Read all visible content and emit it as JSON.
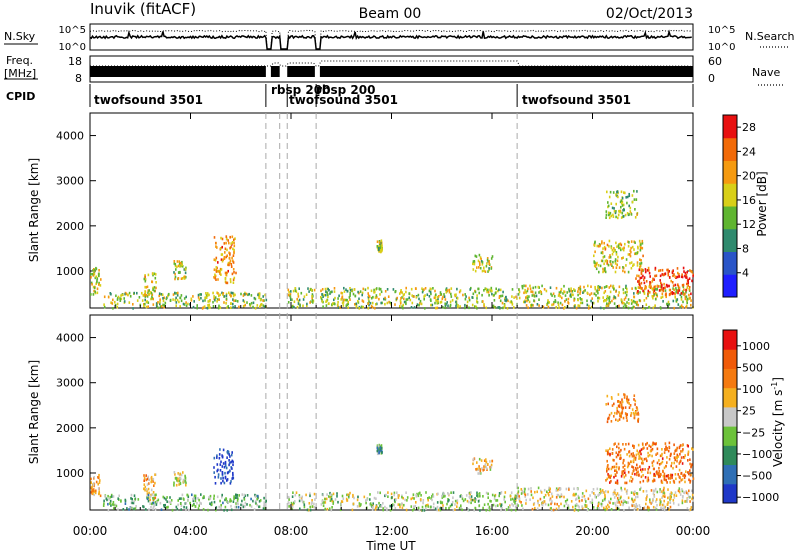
{
  "header": {
    "station": "Inuvik (fitACF)",
    "beam": "Beam 00",
    "date": "02/Oct/2013"
  },
  "panel_labels": {
    "nsky": "N.Sky",
    "nsearch": "N.Search",
    "freq": "Freq.",
    "freq_unit": "[MHz]",
    "nave": "Nave",
    "cpid": "CPID"
  },
  "noise_panel": {
    "left_ticks": [
      "10^5",
      "10^0"
    ],
    "right_ticks": [
      "10^5",
      "10^0"
    ]
  },
  "freq_panel": {
    "left_ticks": [
      "18",
      "8"
    ],
    "right_ticks": [
      "60",
      "0"
    ]
  },
  "cpid_segments": [
    {
      "label": "twofsound 3501",
      "start": 0.0,
      "end": 7.0
    },
    {
      "label": "rbsp 200",
      "start": 7.0,
      "end": 7.55
    },
    {
      "label": "rbsp 200",
      "start": 7.85,
      "end": 9.0
    },
    {
      "label": "twofsound 3501",
      "start": 9.0,
      "end": 17.0
    },
    {
      "label": "twofsound 3501",
      "start": 17.0,
      "end": 24.0
    }
  ],
  "mode_boundaries_hours": [
    7.0,
    7.55,
    7.85,
    9.0,
    17.0
  ],
  "chart_data": [
    {
      "type": "heatmap",
      "name": "power-panel",
      "ylabel": "Slant Range [km]",
      "xlabel": "",
      "xlim": [
        0,
        24
      ],
      "ylim": [
        180,
        4500
      ],
      "yticks": [
        "1000",
        "2000",
        "3000",
        "4000"
      ],
      "colorbar": {
        "label": "Power [dB]",
        "ticks": [
          "4",
          "8",
          "12",
          "16",
          "20",
          "24",
          "28"
        ],
        "range": [
          0,
          30
        ],
        "colors": [
          "#1f1fff",
          "#2a55c8",
          "#2f8a6e",
          "#5fb530",
          "#d8cf18",
          "#f59a10",
          "#f26a08",
          "#e81010"
        ]
      },
      "clusters": [
        {
          "t0": 0.0,
          "t1": 0.4,
          "r0": 500,
          "r1": 1100,
          "level": 0.55
        },
        {
          "t0": 2.1,
          "t1": 2.6,
          "r0": 400,
          "r1": 1000,
          "level": 0.6
        },
        {
          "t0": 3.3,
          "t1": 3.8,
          "r0": 850,
          "r1": 1250,
          "level": 0.55
        },
        {
          "t0": 4.9,
          "t1": 5.8,
          "r0": 750,
          "r1": 1800,
          "level": 0.75
        },
        {
          "t0": 0.5,
          "t1": 7.0,
          "r0": 200,
          "r1": 550,
          "level": 0.5
        },
        {
          "t0": 7.6,
          "t1": 17.0,
          "r0": 200,
          "r1": 650,
          "level": 0.5
        },
        {
          "t0": 11.4,
          "t1": 11.6,
          "r0": 1450,
          "r1": 1700,
          "level": 0.55
        },
        {
          "t0": 15.2,
          "t1": 16.0,
          "r0": 1000,
          "r1": 1400,
          "level": 0.55
        },
        {
          "t0": 17.0,
          "t1": 24.0,
          "r0": 200,
          "r1": 700,
          "level": 0.55
        },
        {
          "t0": 20.0,
          "t1": 22.0,
          "r0": 1000,
          "r1": 1700,
          "level": 0.6
        },
        {
          "t0": 20.5,
          "t1": 21.8,
          "r0": 2200,
          "r1": 2800,
          "level": 0.45
        },
        {
          "t0": 21.7,
          "t1": 24.0,
          "r0": 500,
          "r1": 1100,
          "level": 0.95
        }
      ]
    },
    {
      "type": "heatmap",
      "name": "velocity-panel",
      "ylabel": "Slant Range [km]",
      "xlabel": "Time UT",
      "xlim": [
        0,
        24
      ],
      "ylim": [
        180,
        4500
      ],
      "yticks": [
        "1000",
        "2000",
        "3000",
        "4000"
      ],
      "xticks": [
        "00:00",
        "04:00",
        "08:00",
        "12:00",
        "16:00",
        "20:00",
        "00:00"
      ],
      "colorbar": {
        "label": "Velocity [m s",
        "label_sup": "-1",
        "label_end": "]",
        "ticks": [
          "1000",
          "500",
          "100",
          "25",
          "−25",
          "−100",
          "−500",
          "−1000"
        ],
        "colors": [
          "#1f38c8",
          "#2f6fb5",
          "#2f8a5a",
          "#6cc23a",
          "#c8c8c8",
          "#f5b020",
          "#f57a10",
          "#f05a08",
          "#e81010"
        ]
      },
      "clusters": [
        {
          "t0": 0.0,
          "t1": 0.4,
          "r0": 500,
          "r1": 1000,
          "v": 0.7
        },
        {
          "t0": 2.1,
          "t1": 2.6,
          "r0": 400,
          "r1": 1000,
          "v": 0.65
        },
        {
          "t0": 3.3,
          "t1": 3.8,
          "r0": 750,
          "r1": 1050,
          "v": 0.5
        },
        {
          "t0": 4.9,
          "t1": 5.7,
          "r0": 750,
          "r1": 1550,
          "v": 0.0
        },
        {
          "t0": 0.5,
          "t1": 7.0,
          "r0": 200,
          "r1": 550,
          "v": 0.35
        },
        {
          "t0": 7.6,
          "t1": 17.0,
          "r0": 200,
          "r1": 600,
          "v": 0.45
        },
        {
          "t0": 11.4,
          "t1": 11.6,
          "r0": 1450,
          "r1": 1650,
          "v": 0.3
        },
        {
          "t0": 15.2,
          "t1": 16.0,
          "r0": 1000,
          "r1": 1350,
          "v": 0.6
        },
        {
          "t0": 17.0,
          "t1": 24.0,
          "r0": 200,
          "r1": 700,
          "v": 0.55
        },
        {
          "t0": 20.5,
          "t1": 24.0,
          "r0": 800,
          "r1": 1700,
          "v": 0.78
        },
        {
          "t0": 20.5,
          "t1": 21.8,
          "r0": 2150,
          "r1": 2800,
          "v": 0.75
        }
      ]
    }
  ]
}
